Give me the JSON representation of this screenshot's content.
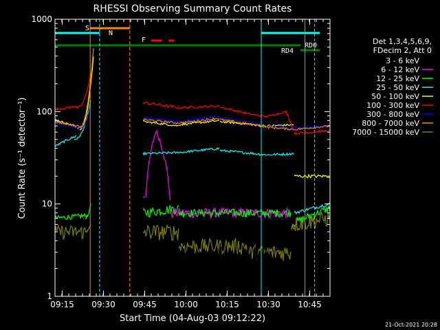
{
  "chart_data": {
    "type": "line",
    "title": "RHESSI Observing Summary Count Rates",
    "xlabel": "Start Time (04-Aug-03 09:12:22)",
    "ylabel": "Count Rate (s⁻¹ detector⁻¹)",
    "x_ticks": [
      "09:15",
      "09:30",
      "09:45",
      "10:00",
      "10:15",
      "10:30",
      "10:45"
    ],
    "x_range_minutes_after_0912": [
      0,
      100
    ],
    "y_log_scale": true,
    "y_range": [
      1,
      1000
    ],
    "y_ticks": [
      "1",
      "10",
      "100",
      "1000"
    ],
    "timestamp": "21-Oct-2021 20:28",
    "legend_header": [
      "Det 1,3,4,5,6,9,",
      "FDecim 2, Att 0"
    ],
    "series": [
      {
        "name": "3 - 6 keV",
        "color": "#000000"
      },
      {
        "name": "6 - 12 keV",
        "color": "#ff00ff"
      },
      {
        "name": "12 - 25 keV",
        "color": "#00ff00"
      },
      {
        "name": "25 - 50 keV",
        "color": "#00ffff"
      },
      {
        "name": "50 - 100 keV",
        "color": "#ffff00"
      },
      {
        "name": "100 - 300 keV",
        "color": "#ff0000"
      },
      {
        "name": "300 - 800 keV",
        "color": "#0000ff"
      },
      {
        "name": "800 - 7000 keV",
        "color": "#ff8800"
      },
      {
        "name": "7000 - 15000 keV",
        "color": "#808000"
      }
    ],
    "flags": [
      {
        "label": "S",
        "color": "#ff8800"
      },
      {
        "label": "N",
        "color": "#00ffff"
      },
      {
        "label": "F",
        "color": "#ff0000"
      },
      {
        "label": "RD0",
        "color": "#008000"
      },
      {
        "label": "RD4",
        "color": "#008000"
      }
    ]
  }
}
